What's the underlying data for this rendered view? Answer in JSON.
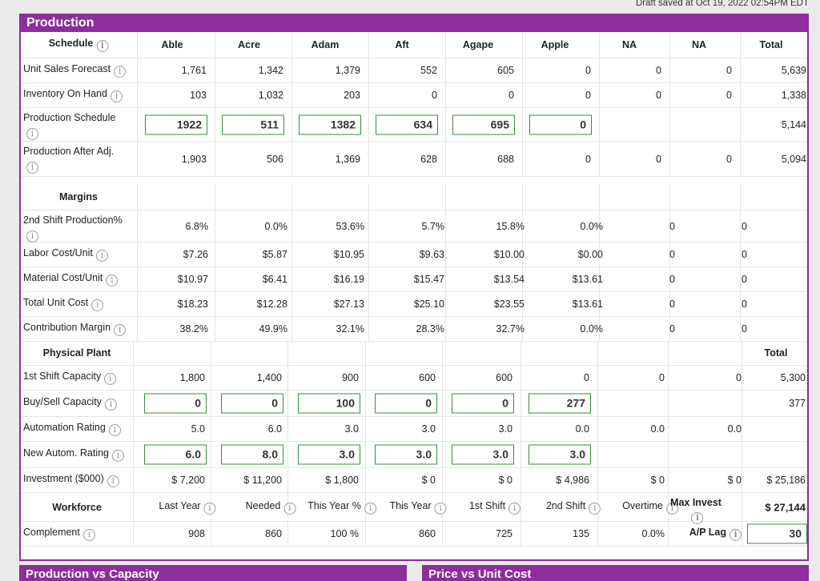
{
  "draft_status": "Draft saved at Oct 19, 2022 02:54PM EDT",
  "panel_title": "Production",
  "schedule": {
    "header": "Schedule",
    "columns": [
      "Able",
      "Acre",
      "Adam",
      "Aft",
      "Agape",
      "Apple",
      "NA",
      "NA",
      "Total"
    ],
    "unit_sales_forecast": {
      "label": "Unit Sales Forecast",
      "values": [
        "1,761",
        "1,342",
        "1,379",
        "552",
        "605",
        "0",
        "0",
        "0",
        "5,639"
      ]
    },
    "inventory_on_hand": {
      "label": "Inventory On Hand",
      "values": [
        "103",
        "1,032",
        "203",
        "0",
        "0",
        "0",
        "0",
        "0",
        "1,338"
      ]
    },
    "production_schedule": {
      "label": "Production Schedule",
      "inputs": [
        "1922",
        "511",
        "1382",
        "634",
        "695",
        "0"
      ],
      "total": "5,144"
    },
    "production_after_adj": {
      "label": "Production After Adj.",
      "values": [
        "1,903",
        "506",
        "1,369",
        "628",
        "688",
        "0",
        "0",
        "0",
        "5,094"
      ]
    }
  },
  "margins": {
    "header": "Margins",
    "second_shift": {
      "label": "2nd Shift Production%",
      "values": [
        "6.8%",
        "0.0%",
        "53.6%",
        "5.7%",
        "15.8%",
        "0.0%",
        "0",
        "0"
      ]
    },
    "labor_cost": {
      "label": "Labor Cost/Unit",
      "values": [
        "$7.26",
        "$5.87",
        "$10.95",
        "$9.63",
        "$10.00",
        "$0.00",
        "0",
        "0"
      ]
    },
    "material_cost": {
      "label": "Material Cost/Unit",
      "values": [
        "$10.97",
        "$6.41",
        "$16.19",
        "$15.47",
        "$13.54",
        "$13.61",
        "0",
        "0"
      ]
    },
    "total_unit_cost": {
      "label": "Total Unit Cost",
      "values": [
        "$18.23",
        "$12.28",
        "$27.13",
        "$25.10",
        "$23.55",
        "$13.61",
        "0",
        "0"
      ]
    },
    "contribution_margin": {
      "label": "Contribution Margin",
      "values": [
        "38.2%",
        "49.9%",
        "32.1%",
        "28.3%",
        "32.7%",
        "0.0%",
        "0",
        "0"
      ]
    }
  },
  "physical_plant": {
    "header": "Physical Plant",
    "total_header": "Total",
    "first_shift_capacity": {
      "label": "1st Shift Capacity",
      "values": [
        "1,800",
        "1,400",
        "900",
        "600",
        "600",
        "0",
        "0",
        "0",
        "5,300"
      ]
    },
    "buy_sell_capacity": {
      "label": "Buy/Sell Capacity",
      "inputs": [
        "0",
        "0",
        "100",
        "0",
        "0",
        "277"
      ],
      "total": "377"
    },
    "automation_rating": {
      "label": "Automation Rating",
      "values": [
        "5.0",
        "6.0",
        "3.0",
        "3.0",
        "3.0",
        "0.0",
        "0.0",
        "0.0"
      ]
    },
    "new_autom_rating": {
      "label": "New Autom. Rating",
      "inputs": [
        "6.0",
        "8.0",
        "3.0",
        "3.0",
        "3.0",
        "3.0"
      ]
    },
    "investment": {
      "label": "Investment ($000)",
      "values": [
        "$ 7,200",
        "$ 11,200",
        "$ 1,800",
        "$ 0",
        "$ 0",
        "$ 4,986",
        "$ 0",
        "$ 0",
        "$ 25,186"
      ]
    }
  },
  "workforce": {
    "header": "Workforce",
    "columns": [
      "Last Year",
      "Needed",
      "This Year %",
      "This Year",
      "1st Shift",
      "2nd Shift",
      "Overtime"
    ],
    "max_invest_label": "Max Invest",
    "max_invest_value": "$ 27,144",
    "complement_label": "Complement",
    "complement_values": [
      "908",
      "860",
      "100 %",
      "860",
      "725",
      "135",
      "0.0%"
    ],
    "ap_lag_label": "A/P Lag",
    "ap_lag_value": "30"
  },
  "bottom_panels": [
    "Production vs Capacity",
    "Price vs Unit Cost"
  ]
}
